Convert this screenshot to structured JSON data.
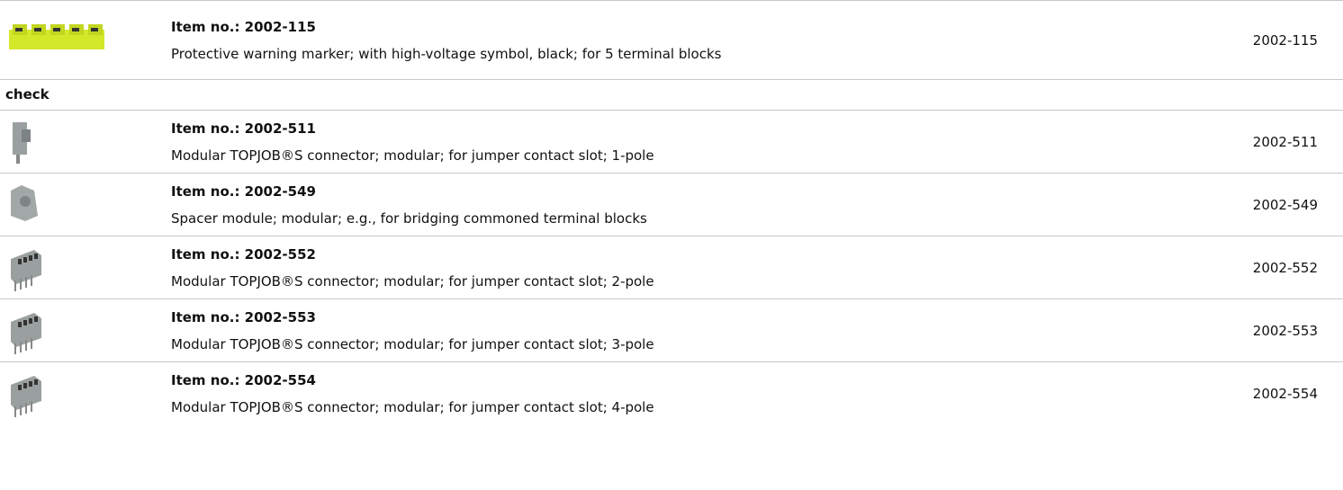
{
  "top_items": [
    {
      "title": "Item no.: 2002-115",
      "description": "Protective warning marker; with high-voltage symbol, black; for 5 terminal blocks",
      "number": "2002-115"
    }
  ],
  "section_label": "check",
  "items": [
    {
      "title": "Item no.: 2002-511",
      "description": "Modular TOPJOB®S connector; modular; for jumper contact slot; 1-pole",
      "number": "2002-511"
    },
    {
      "title": "Item no.: 2002-549",
      "description": "Spacer module; modular; e.g., for bridging commoned terminal blocks",
      "number": "2002-549"
    },
    {
      "title": "Item no.: 2002-552",
      "description": "Modular TOPJOB®S connector; modular; for jumper contact slot; 2-pole",
      "number": "2002-552"
    },
    {
      "title": "Item no.: 2002-553",
      "description": "Modular TOPJOB®S connector; modular; for jumper contact slot; 3-pole",
      "number": "2002-553"
    },
    {
      "title": "Item no.: 2002-554",
      "description": "Modular TOPJOB®S connector; modular; for jumper contact slot; 4-pole",
      "number": "2002-554"
    }
  ]
}
